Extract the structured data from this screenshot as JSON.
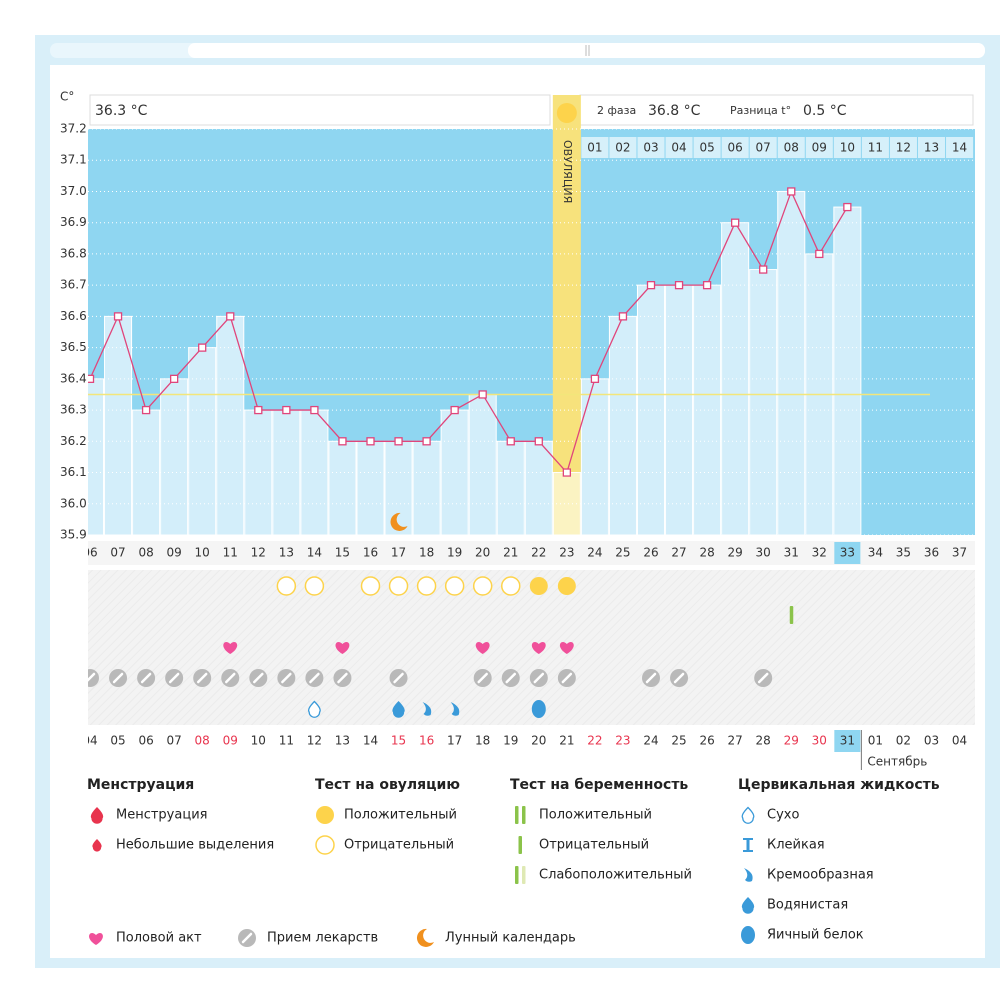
{
  "chart_data": {
    "type": "line",
    "y_label": "C°",
    "categories": [
      "06",
      "07",
      "08",
      "09",
      "10",
      "11",
      "12",
      "13",
      "14",
      "15",
      "16",
      "17",
      "18",
      "19",
      "20",
      "21",
      "22",
      "23",
      "24",
      "25",
      "26",
      "27",
      "28",
      "29",
      "30",
      "31",
      "32",
      "33",
      "34",
      "35",
      "36",
      "37"
    ],
    "values": [
      36.4,
      36.6,
      36.3,
      36.4,
      36.5,
      36.6,
      36.3,
      36.3,
      36.3,
      36.2,
      36.2,
      36.2,
      36.2,
      36.3,
      36.35,
      36.2,
      36.2,
      36.1,
      36.4,
      36.6,
      36.7,
      36.7,
      36.7,
      36.9,
      36.75,
      37.0,
      36.8,
      36.95,
      null,
      null,
      null,
      null
    ],
    "color": "#e0457b",
    "bar_color": "#d3eefa",
    "plot_color": "#8fd6f1",
    "dates": [
      "04",
      "05",
      "06",
      "07",
      "08",
      "09",
      "10",
      "11",
      "12",
      "13",
      "14",
      "15",
      "16",
      "17",
      "18",
      "19",
      "20",
      "21",
      "22",
      "23",
      "24",
      "25",
      "26",
      "27",
      "28",
      "29",
      "30",
      "31",
      "01",
      "02",
      "03",
      "04"
    ],
    "highlight_dates": [
      "08",
      "09",
      "15",
      "16",
      "22",
      "23",
      "29",
      "30"
    ],
    "highlight_color": "#e8344e",
    "month": {
      "label": "Сентябрь",
      "at_date": "01"
    },
    "phase2_days": [
      "01",
      "02",
      "03",
      "04",
      "05",
      "06",
      "07",
      "08",
      "09",
      "10",
      "11",
      "12",
      "13",
      "14"
    ],
    "ovulation_day": "23",
    "ovulation_label": "ОВУЛЯЦИЯ",
    "ovulation_color": "#f7e27c",
    "selected_day": "33",
    "coverline": 36.35,
    "coverline_color": "#f3e67a",
    "ylim": [
      35.9,
      37.2
    ],
    "yticks": [
      35.9,
      {
        "value": 36,
        "label": "36.0"
      },
      36.1,
      36.2,
      36.3,
      36.4,
      36.5,
      36.6,
      36.7,
      36.8,
      36.9,
      {
        "value": 37,
        "label": "37.0"
      },
      37.1,
      37.2
    ],
    "grid": true
  },
  "header": {
    "phase1_temp": "36.3 °C",
    "phase2_label": "2 фаза",
    "phase2_temp": "36.8 °C",
    "diff_label": "Разница t°",
    "diff": "0.5 °C"
  },
  "legend": {
    "groups": [
      {
        "title": "Менструация",
        "items": [
          {
            "label": "Менструация",
            "icon": "drop",
            "color": "#e8344e"
          },
          {
            "label": "Небольшие выделения",
            "icon": "drop-small",
            "color": "#e8344e"
          }
        ]
      },
      {
        "title": "Тест на овуляцию",
        "items": [
          {
            "label": "Положительный",
            "icon": "circle",
            "color": "#fdd34b",
            "days": [
              "22",
              "23"
            ]
          },
          {
            "label": "Отрицательный",
            "icon": "circle-outline",
            "color": "#fdd34b",
            "days": [
              "13",
              "14",
              "16",
              "17",
              "18",
              "19",
              "20",
              "21"
            ]
          }
        ]
      },
      {
        "title": "Тест на беременность",
        "items": [
          {
            "label": "Положительный",
            "icon": "bars2",
            "color": "#8bc34a"
          },
          {
            "label": "Отрицательный",
            "icon": "bar",
            "color": "#8bc34a",
            "days": [
              "31"
            ]
          },
          {
            "label": "Слабоположительный",
            "icon": "bar-faint",
            "color": "#8bc34a"
          }
        ]
      },
      {
        "title": "Цервикальная жидкость",
        "items": [
          {
            "label": "Сухо",
            "icon": "drop-outline",
            "color": "#3a9ad9",
            "days": [
              "14"
            ]
          },
          {
            "label": "Клейкая",
            "icon": "hourglass",
            "color": "#3a9ad9"
          },
          {
            "label": "Кремообразная",
            "icon": "crescent-drop",
            "color": "#3a9ad9",
            "days": [
              "18",
              "19"
            ]
          },
          {
            "label": "Водянистая",
            "icon": "drop",
            "color": "#3a9ad9",
            "days": [
              "17"
            ]
          },
          {
            "label": "Яичный белок",
            "icon": "drop-round",
            "color": "#3a9ad9",
            "days": [
              "22"
            ]
          }
        ]
      }
    ],
    "extra": [
      {
        "label": "Половой акт",
        "icon": "heart",
        "color": "#f0509a",
        "days": [
          "11",
          "15",
          "20",
          "22",
          "23"
        ]
      },
      {
        "label": "Прием лекарств",
        "icon": "pill",
        "color": "#b9b9b9",
        "days": [
          "06",
          "07",
          "08",
          "09",
          "10",
          "11",
          "12",
          "13",
          "14",
          "15",
          "17",
          "20",
          "21",
          "22",
          "23",
          "26",
          "27",
          "30"
        ]
      },
      {
        "label": "Лунный календарь",
        "icon": "moon",
        "color": "#f0901e",
        "days": [
          "17"
        ]
      }
    ]
  }
}
